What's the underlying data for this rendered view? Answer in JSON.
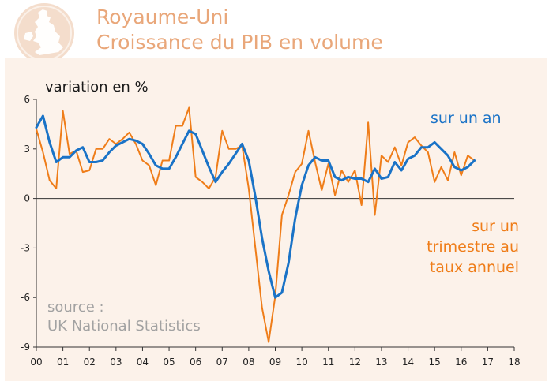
{
  "header": {
    "title_line1": "Royaume-Uni",
    "title_line2": "Croissance du PIB en volume",
    "logo_icon": "uk-map-seal-icon"
  },
  "colors": {
    "title": "#e9a77a",
    "yoy": "#1a73c7",
    "qoq": "#ef7d19",
    "panel": "#fcf2ea"
  },
  "source": {
    "line1": "source :",
    "line2": "UK National Statistics"
  },
  "chart_data": {
    "type": "line",
    "ylabel": "variation en %",
    "ylim": [
      -9,
      6
    ],
    "yticks": [
      6,
      3,
      0,
      -3,
      -6,
      -9
    ],
    "ytick_labels": [
      "6",
      "3",
      "0",
      "-3",
      "-6",
      "-9"
    ],
    "xlim": [
      2000,
      2018
    ],
    "xticks": [
      2000,
      2001,
      2002,
      2003,
      2004,
      2005,
      2006,
      2007,
      2008,
      2009,
      2010,
      2011,
      2012,
      2013,
      2014,
      2015,
      2016,
      2017,
      2018
    ],
    "xtick_labels": [
      "00",
      "01",
      "02",
      "03",
      "04",
      "05",
      "06",
      "07",
      "08",
      "09",
      "10",
      "11",
      "12",
      "13",
      "14",
      "15",
      "16",
      "17",
      "18"
    ],
    "grid": false,
    "series": [
      {
        "name": "sur un an",
        "label": "sur un an",
        "x": [
          2000.0,
          2000.25,
          2000.5,
          2000.75,
          2001.0,
          2001.25,
          2001.5,
          2001.75,
          2002.0,
          2002.25,
          2002.5,
          2002.75,
          2003.0,
          2003.25,
          2003.5,
          2003.75,
          2004.0,
          2004.25,
          2004.5,
          2004.75,
          2005.0,
          2005.25,
          2005.5,
          2005.75,
          2006.0,
          2006.25,
          2006.5,
          2006.75,
          2007.0,
          2007.25,
          2007.5,
          2007.75,
          2008.0,
          2008.25,
          2008.5,
          2008.75,
          2009.0,
          2009.25,
          2009.5,
          2009.75,
          2010.0,
          2010.25,
          2010.5,
          2010.75,
          2011.0,
          2011.25,
          2011.5,
          2011.75,
          2012.0,
          2012.25,
          2012.5,
          2012.75,
          2013.0,
          2013.25,
          2013.5,
          2013.75,
          2014.0,
          2014.25,
          2014.5,
          2014.75,
          2015.0,
          2015.25,
          2015.5,
          2015.75,
          2016.0,
          2016.25,
          2016.5
        ],
        "values": [
          4.3,
          5.0,
          3.4,
          2.2,
          2.5,
          2.5,
          2.9,
          3.1,
          2.2,
          2.2,
          2.3,
          2.8,
          3.2,
          3.4,
          3.6,
          3.5,
          3.3,
          2.7,
          2.0,
          1.8,
          1.8,
          2.5,
          3.3,
          4.1,
          3.9,
          2.9,
          1.9,
          1.0,
          1.6,
          2.1,
          2.7,
          3.3,
          2.3,
          0.1,
          -2.4,
          -4.4,
          -6.0,
          -5.7,
          -3.9,
          -1.2,
          0.8,
          2.0,
          2.5,
          2.3,
          2.3,
          1.3,
          1.1,
          1.3,
          1.2,
          1.2,
          1.0,
          1.8,
          1.2,
          1.3,
          2.2,
          1.7,
          2.4,
          2.6,
          3.1,
          3.1,
          3.4,
          3.0,
          2.6,
          1.9,
          1.7,
          1.9,
          2.3
        ]
      },
      {
        "name": "sur un trimestre au taux annuel",
        "label_lines": [
          "sur un",
          "trimestre au",
          "taux annuel"
        ],
        "x": [
          2000.0,
          2000.25,
          2000.5,
          2000.75,
          2001.0,
          2001.25,
          2001.5,
          2001.75,
          2002.0,
          2002.25,
          2002.5,
          2002.75,
          2003.0,
          2003.25,
          2003.5,
          2003.75,
          2004.0,
          2004.25,
          2004.5,
          2004.75,
          2005.0,
          2005.25,
          2005.5,
          2005.75,
          2006.0,
          2006.25,
          2006.5,
          2006.75,
          2007.0,
          2007.25,
          2007.5,
          2007.75,
          2008.0,
          2008.25,
          2008.5,
          2008.75,
          2009.0,
          2009.25,
          2009.5,
          2009.75,
          2010.0,
          2010.25,
          2010.5,
          2010.75,
          2011.0,
          2011.25,
          2011.5,
          2011.75,
          2012.0,
          2012.25,
          2012.5,
          2012.75,
          2013.0,
          2013.25,
          2013.5,
          2013.75,
          2014.0,
          2014.25,
          2014.5,
          2014.75,
          2015.0,
          2015.25,
          2015.5,
          2015.75,
          2016.0,
          2016.25,
          2016.5
        ],
        "values": [
          4.2,
          2.8,
          1.1,
          0.6,
          5.3,
          2.7,
          2.9,
          1.6,
          1.7,
          3.0,
          3.0,
          3.6,
          3.3,
          3.6,
          4.0,
          3.3,
          2.3,
          2.0,
          0.8,
          2.3,
          2.3,
          4.4,
          4.4,
          5.5,
          1.3,
          1.0,
          0.6,
          1.3,
          4.1,
          3.0,
          3.0,
          3.2,
          0.6,
          -3.0,
          -6.6,
          -8.7,
          -5.9,
          -1.0,
          0.2,
          1.6,
          2.1,
          4.1,
          2.2,
          0.5,
          2.1,
          0.2,
          1.7,
          1.0,
          1.7,
          -0.4,
          4.6,
          -1.0,
          2.6,
          2.2,
          3.1,
          2.0,
          3.4,
          3.7,
          3.2,
          2.8,
          1.0,
          1.9,
          1.1,
          2.8,
          1.4,
          2.6,
          2.3
        ]
      }
    ]
  }
}
